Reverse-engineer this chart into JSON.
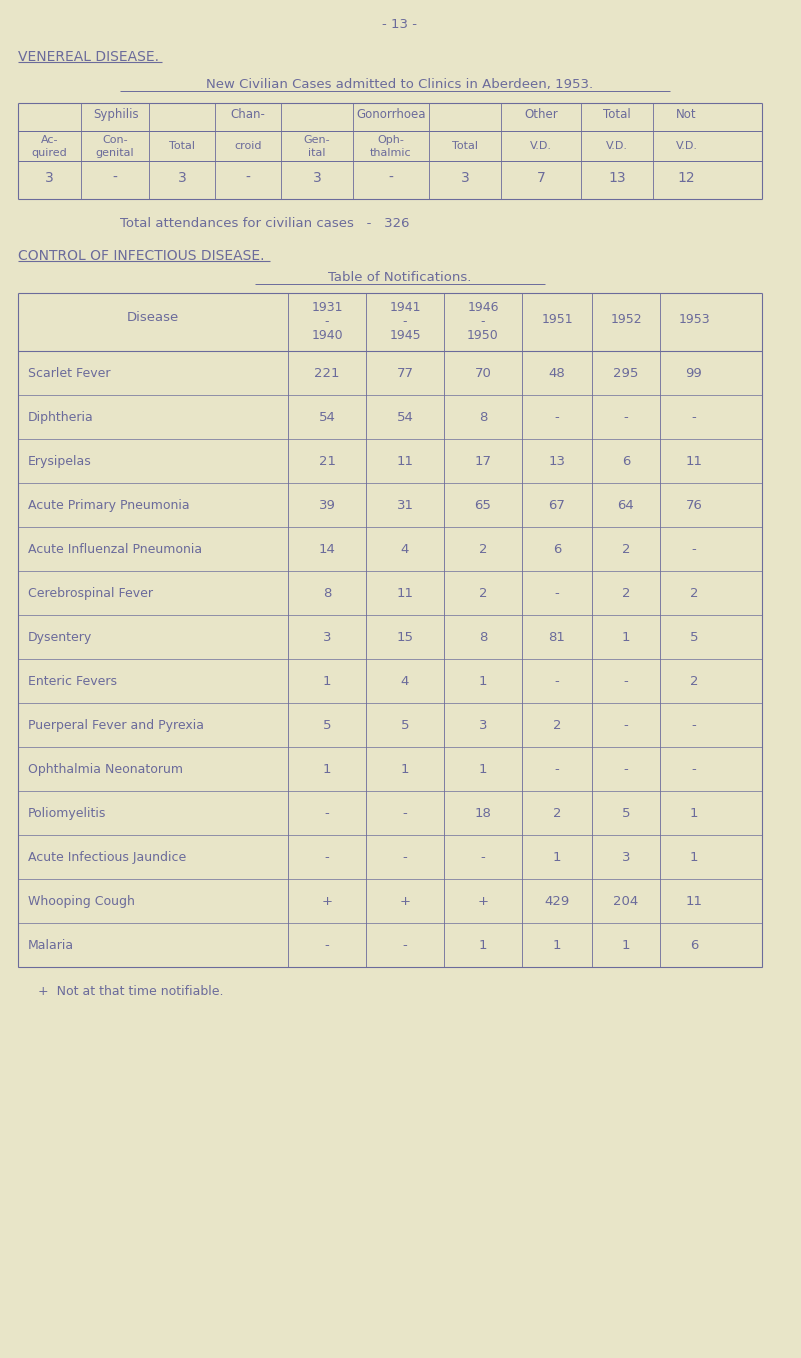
{
  "bg_color": "#e8e5c8",
  "text_color": "#6b6b9b",
  "page_num": "- 13 -",
  "section1_title": "VENEREAL DISEASE.",
  "section1_subtitle": "New Civilian Cases admitted to Clinics in Aberdeen, 1953.",
  "total_attendances_text": "Total attendances for civilian cases",
  "total_attendances_val": "326",
  "table1_data": [
    "3",
    "-",
    "3",
    "-",
    "3",
    "-",
    "3",
    "7",
    "13",
    "12"
  ],
  "section2_title": "CONTROL OF INFECTIOUS DISEASE.",
  "section2_subtitle": "Table of Notifications.",
  "table2_rows": [
    [
      "Scarlet Fever",
      "221",
      "77",
      "70",
      "48",
      "295",
      "99"
    ],
    [
      "Diphtheria",
      "54",
      "54",
      "8",
      "-",
      "-",
      "-"
    ],
    [
      "Erysipelas",
      "21",
      "11",
      "17",
      "13",
      "6",
      "11"
    ],
    [
      "Acute Primary Pneumonia",
      "39",
      "31",
      "65",
      "67",
      "64",
      "76"
    ],
    [
      "Acute Influenzal Pneumonia",
      "14",
      "4",
      "2",
      "6",
      "2",
      "-"
    ],
    [
      "Cerebrospinal Fever",
      "8",
      "11",
      "2",
      "-",
      "2",
      "2"
    ],
    [
      "Dysentery",
      "3",
      "15",
      "8",
      "81",
      "1",
      "5"
    ],
    [
      "Enteric Fevers",
      "1",
      "4",
      "1",
      "-",
      "-",
      "2"
    ],
    [
      "Puerperal Fever and Pyrexia",
      "5",
      "5",
      "3",
      "2",
      "-",
      "-"
    ],
    [
      "Ophthalmia Neonatorum",
      "1",
      "1",
      "1",
      "-",
      "-",
      "-"
    ],
    [
      "Poliomyelitis",
      "-",
      "-",
      "18",
      "2",
      "5",
      "1"
    ],
    [
      "Acute Infectious Jaundice",
      "-",
      "-",
      "-",
      "1",
      "3",
      "1"
    ],
    [
      "Whooping Cough",
      "+",
      "+",
      "+",
      "429",
      "204",
      "11"
    ],
    [
      "Malaria",
      "-",
      "-",
      "1",
      "1",
      "1",
      "6"
    ]
  ],
  "footnote": "+  Not at that time notifiable."
}
